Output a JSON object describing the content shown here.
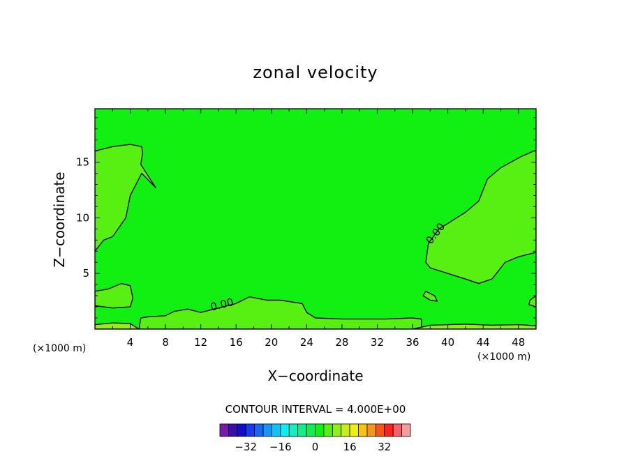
{
  "chart_data": {
    "type": "contour",
    "title": "zonal velocity",
    "xlabel": "X−coordinate",
    "ylabel": "Z−coordinate",
    "x_unit_left": "(×1000 m)",
    "x_unit_right": "(×1000 m)",
    "xlim": [
      0,
      50
    ],
    "ylim": [
      0,
      19.8
    ],
    "x_ticks": [
      4,
      8,
      12,
      16,
      20,
      24,
      28,
      32,
      36,
      40,
      44,
      48
    ],
    "x_tick_labels": [
      "4",
      "8",
      "12",
      "16",
      "20",
      "24",
      "28",
      "32",
      "36",
      "40",
      "44",
      "48"
    ],
    "y_ticks": [
      5,
      10,
      15
    ],
    "y_tick_labels": [
      "5",
      "10",
      "15"
    ],
    "contour_interval_text": "CONTOUR INTERVAL = 4.000E+00",
    "contour_interval": 4,
    "contour_labels": [
      {
        "text": "0.00",
        "x": 14.5,
        "z": 1.9
      },
      {
        "text": "0.00",
        "x": 38.9,
        "z": 8.4
      }
    ],
    "regions": [
      {
        "name": "upper-left",
        "level": 4,
        "points": [
          [
            0,
            7
          ],
          [
            1,
            8
          ],
          [
            2,
            8.3
          ],
          [
            3.5,
            10
          ],
          [
            4,
            12
          ],
          [
            5.3,
            14
          ],
          [
            6.9,
            12.7
          ],
          [
            5.2,
            14.8
          ],
          [
            5.4,
            15.8
          ],
          [
            5.3,
            16.4
          ],
          [
            4,
            16.6
          ],
          [
            2,
            16.4
          ],
          [
            0,
            16
          ]
        ]
      },
      {
        "name": "lower-left",
        "level": 4,
        "points": [
          [
            0,
            2.1
          ],
          [
            2,
            1.9
          ],
          [
            4,
            2
          ],
          [
            4.3,
            2.8
          ],
          [
            4,
            3.9
          ],
          [
            3,
            4.1
          ],
          [
            1.5,
            3.6
          ],
          [
            0,
            3.4
          ]
        ]
      },
      {
        "name": "bottom-band",
        "level": 4,
        "points": [
          [
            5,
            0
          ],
          [
            5.2,
            1
          ],
          [
            6,
            1.1
          ],
          [
            8,
            1.2
          ],
          [
            9,
            1.6
          ],
          [
            10.5,
            1.8
          ],
          [
            12,
            1.5
          ],
          [
            14,
            1.9
          ],
          [
            16,
            2.3
          ],
          [
            17.5,
            2.9
          ],
          [
            19.5,
            2.6
          ],
          [
            21,
            2.6
          ],
          [
            23.5,
            2.3
          ],
          [
            24,
            1.5
          ],
          [
            25,
            1
          ],
          [
            28,
            0.9
          ],
          [
            33,
            0.9
          ],
          [
            36,
            1
          ],
          [
            37,
            0.9
          ],
          [
            37,
            0
          ]
        ]
      },
      {
        "name": "right",
        "level": 4,
        "points": [
          [
            50,
            16.1
          ],
          [
            48.3,
            15.5
          ],
          [
            46,
            14.5
          ],
          [
            44.5,
            13.5
          ],
          [
            43.5,
            11.5
          ],
          [
            42,
            10.5
          ],
          [
            39,
            9
          ],
          [
            37.8,
            7.7
          ],
          [
            37.5,
            6
          ],
          [
            38,
            5.5
          ],
          [
            40,
            5
          ],
          [
            42,
            4.5
          ],
          [
            43.5,
            4.1
          ],
          [
            45,
            4.5
          ],
          [
            46.5,
            6
          ],
          [
            48,
            6.5
          ],
          [
            50,
            6.9
          ]
        ]
      },
      {
        "name": "right-edge",
        "level": 4,
        "points": [
          [
            50,
            3
          ],
          [
            49.3,
            2.6
          ],
          [
            49.2,
            2.2
          ],
          [
            50,
            2
          ]
        ]
      },
      {
        "name": "small-38",
        "level": 4,
        "points": [
          [
            37.2,
            3
          ],
          [
            38,
            2.6
          ],
          [
            38.8,
            2.5
          ],
          [
            38.5,
            3
          ],
          [
            37.5,
            3.4
          ]
        ]
      },
      {
        "name": "bottom-left-strip",
        "level": 8,
        "points": [
          [
            0,
            0
          ],
          [
            0,
            0.4
          ],
          [
            2,
            0.55
          ],
          [
            4,
            0.5
          ],
          [
            4.6,
            0.2
          ],
          [
            5,
            0
          ]
        ]
      },
      {
        "name": "bottom-right-strip",
        "level": 8,
        "points": [
          [
            36,
            0
          ],
          [
            38,
            0.35
          ],
          [
            42,
            0.45
          ],
          [
            45,
            0.35
          ],
          [
            48,
            0.4
          ],
          [
            50,
            0.3
          ],
          [
            50,
            0
          ]
        ]
      }
    ],
    "background_level": 0,
    "colorbar": {
      "ticks": [
        -32,
        -16,
        0,
        16,
        32
      ],
      "tick_labels": [
        "−32",
        "−16",
        "0",
        "16",
        "32"
      ],
      "levels": [
        -40,
        -36,
        -32,
        -28,
        -24,
        -20,
        -16,
        -12,
        -8,
        -4,
        0,
        4,
        8,
        12,
        16,
        20,
        24,
        28,
        32,
        36,
        40
      ],
      "colors": [
        "#7a1aad",
        "#3a11a8",
        "#1010c8",
        "#1a3aee",
        "#1a66f2",
        "#1996f5",
        "#10c3f2",
        "#12ecf0",
        "#10f0c0",
        "#10ee8e",
        "#13ed4e",
        "#12f012",
        "#58f012",
        "#93ef14",
        "#c9ef10",
        "#f0ef10",
        "#f6c412",
        "#f6951a",
        "#f6560f",
        "#f8231f",
        "#f5606a",
        "#f59c9c"
      ]
    },
    "grid": false,
    "legend": "colorbar-bottom"
  }
}
